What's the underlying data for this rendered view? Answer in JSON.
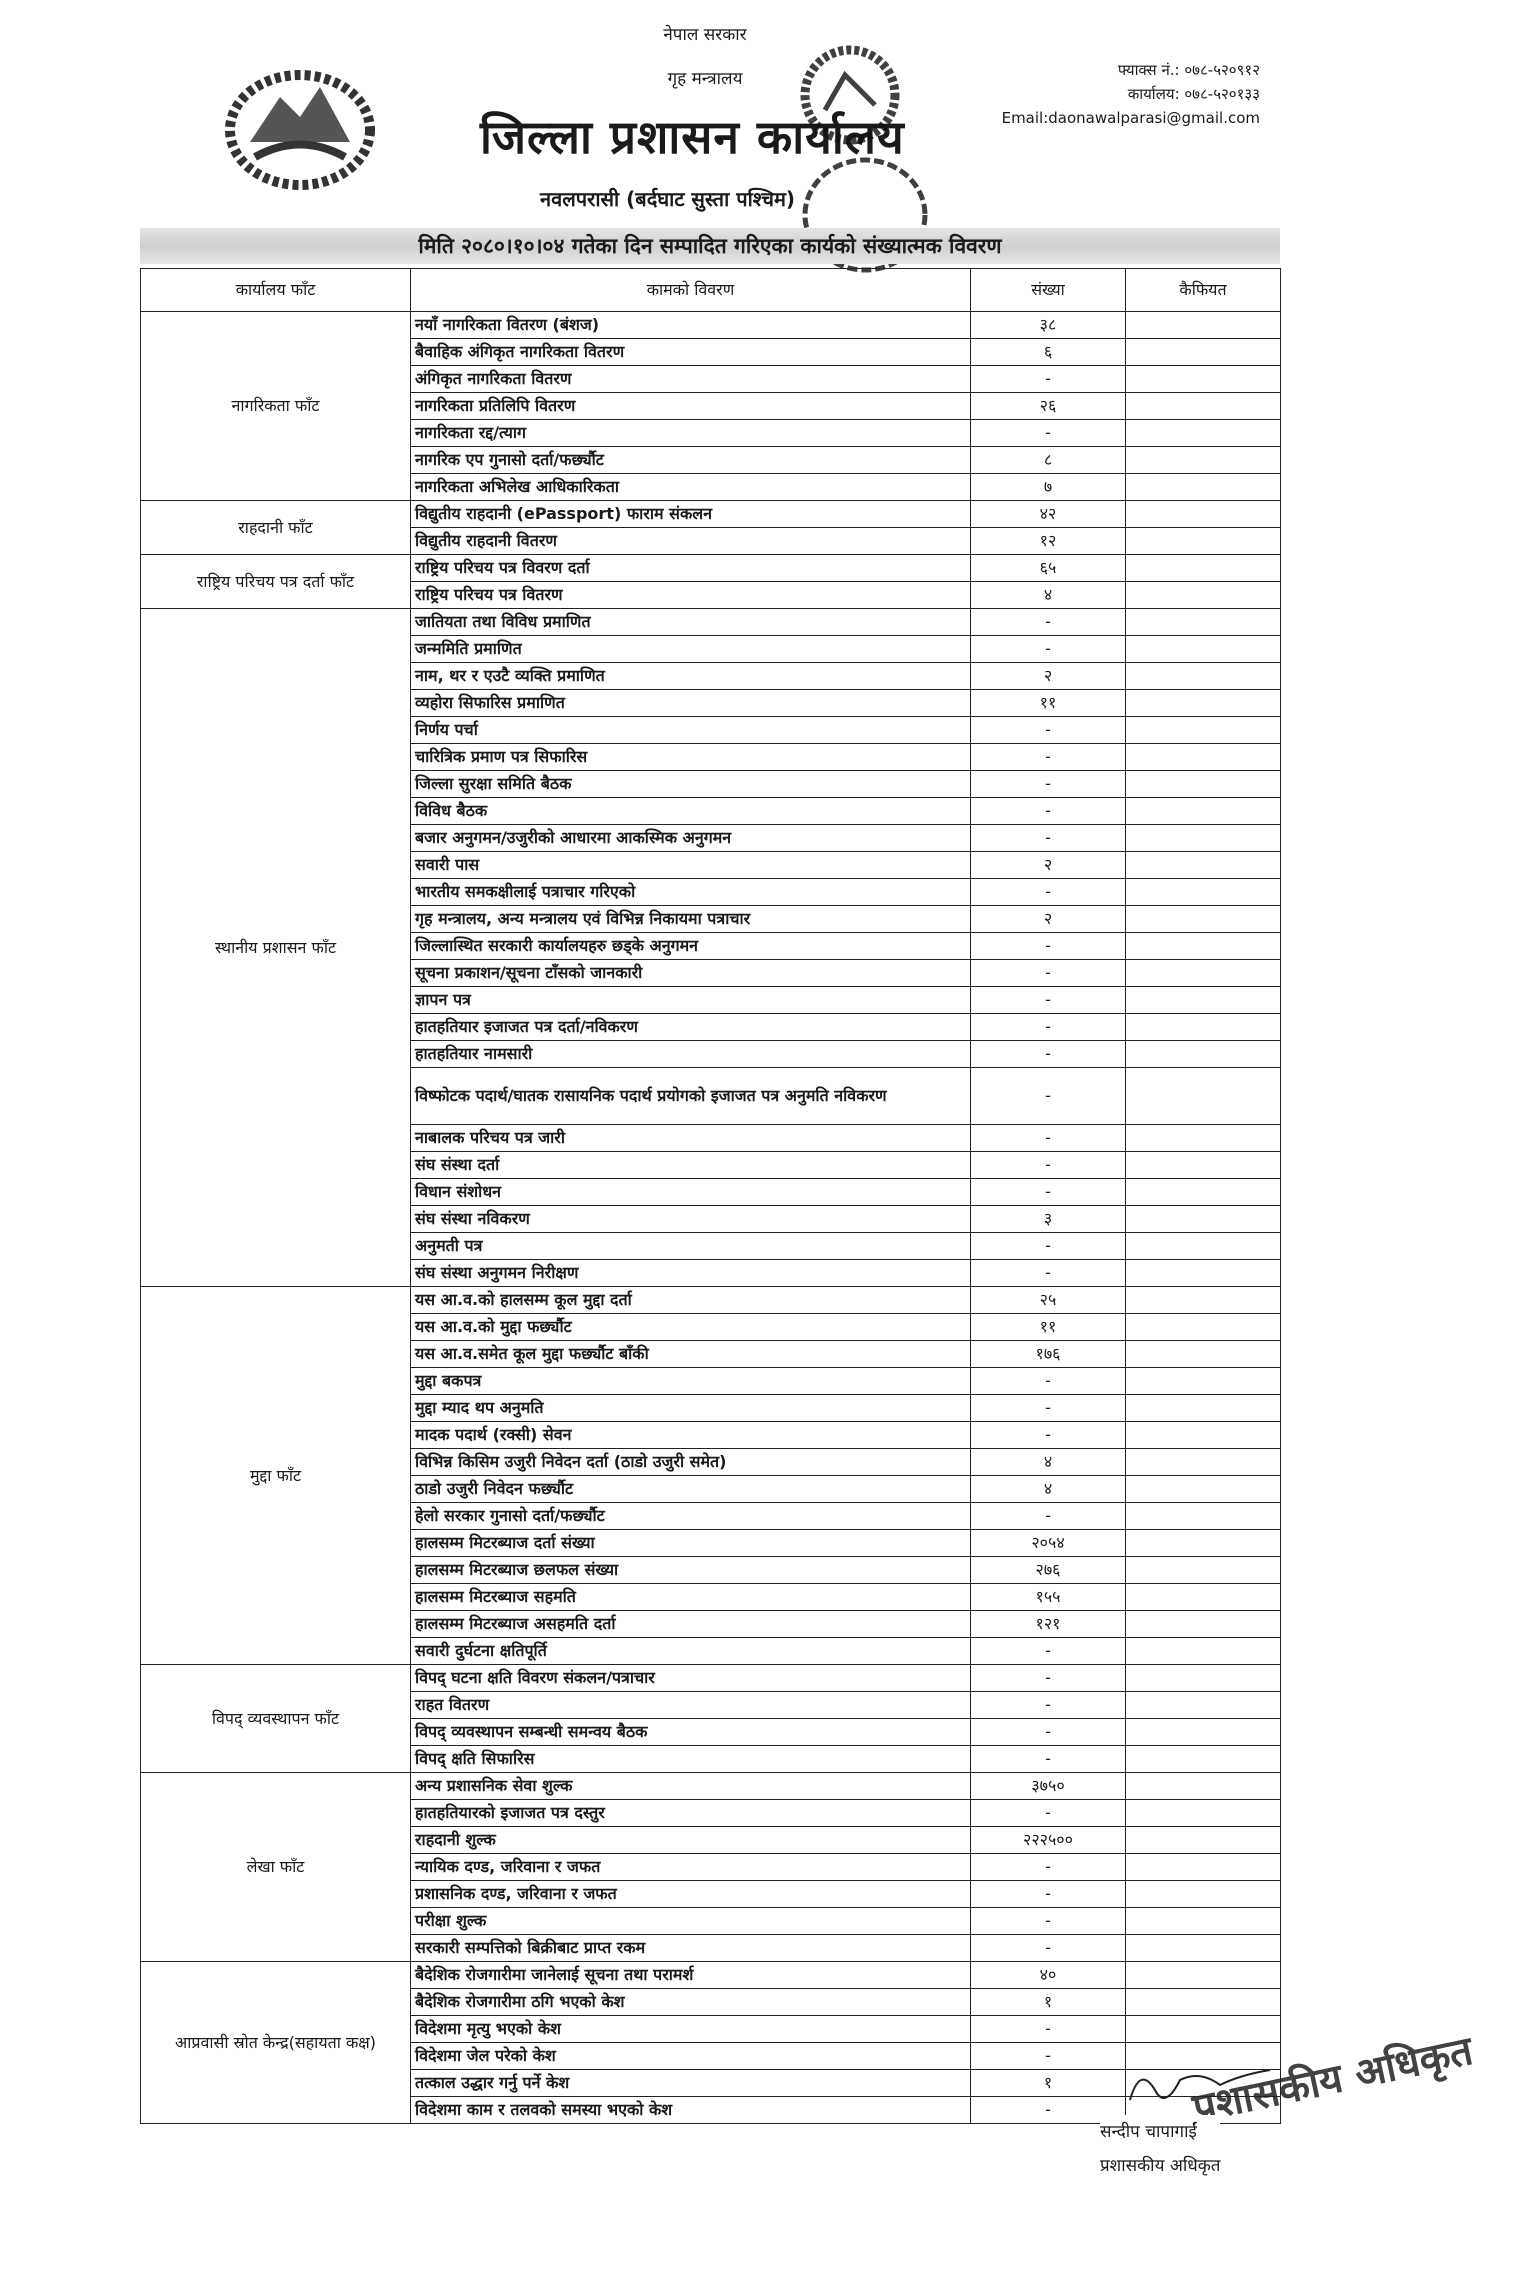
{
  "header": {
    "government": "नेपाल सरकार",
    "ministry": "गृह मन्त्रालय",
    "office": "जिल्ला प्रशासन कार्यालय",
    "district": "नवलपरासी (बर्दघाट सुस्ता पश्चिम)",
    "fax": "फ्याक्स नं.: ०७८-५२०९१२",
    "phone": "कार्यालय: ०७८-५२०१३३",
    "email": "Email:daonawalparasi@gmail.com"
  },
  "report_title": "मिति २०८०।१०।०४ गतेका दिन सम्पादित गरिएका कार्यको संख्यात्मक विवरण",
  "table": {
    "columns": [
      "कार्यालय फाँट",
      "कामको विवरण",
      "संख्या",
      "कैफियत"
    ],
    "sections": [
      {
        "name": "नागरिकता फाँट",
        "rows": [
          {
            "desc": "नयाँ नागरिकता वितरण (बंशज)",
            "count": "३८"
          },
          {
            "desc": "बैवाहिक अंगिकृत नागरिकता वितरण",
            "count": "६"
          },
          {
            "desc": "अंगिकृत नागरिकता वितरण",
            "count": "-"
          },
          {
            "desc": "नागरिकता प्रतिलिपि वितरण",
            "count": "२६"
          },
          {
            "desc": "नागरिकता रद्द/त्याग",
            "count": "-"
          },
          {
            "desc": "नागरिक एप गुनासो दर्ता/फर्छ्यौट",
            "count": "८"
          },
          {
            "desc": "नागरिकता अभिलेख आधिकारिकता",
            "count": "७"
          }
        ]
      },
      {
        "name": "राहदानी फाँट",
        "rows": [
          {
            "desc": "विद्युतीय राहदानी (ePassport) फाराम संकलन",
            "count": "४२"
          },
          {
            "desc": "विद्युतीय राहदानी वितरण",
            "count": "१२"
          }
        ]
      },
      {
        "name": "राष्ट्रिय परिचय पत्र दर्ता फाँट",
        "rows": [
          {
            "desc": "राष्ट्रिय परिचय पत्र विवरण दर्ता",
            "count": "६५"
          },
          {
            "desc": "राष्ट्रिय परिचय पत्र वितरण",
            "count": "४"
          }
        ]
      },
      {
        "name": "स्थानीय प्रशासन फाँट",
        "rows": [
          {
            "desc": "जातियता तथा विविध प्रमाणित",
            "count": "-"
          },
          {
            "desc": "जन्ममिति प्रमाणित",
            "count": "-"
          },
          {
            "desc": "नाम, थर र एउटै व्यक्ति प्रमाणित",
            "count": "२"
          },
          {
            "desc": "व्यहोरा सिफारिस प्रमाणित",
            "count": "११"
          },
          {
            "desc": "निर्णय पर्चा",
            "count": "-"
          },
          {
            "desc": "चारित्रिक प्रमाण पत्र सिफारिस",
            "count": "-"
          },
          {
            "desc": "जिल्ला सुरक्षा समिति बैठक",
            "count": "-"
          },
          {
            "desc": "विविध बैठक",
            "count": "-"
          },
          {
            "desc": "बजार अनुगमन/उजुरीको आधारमा आकस्मिक अनुगमन",
            "count": "-"
          },
          {
            "desc": "सवारी पास",
            "count": "२"
          },
          {
            "desc": "भारतीय समकक्षीलाई पत्राचार गरिएको",
            "count": "-"
          },
          {
            "desc": "गृह मन्त्रालय, अन्य मन्त्रालय एवं विभिन्न निकायमा पत्राचार",
            "count": "२"
          },
          {
            "desc": "जिल्लास्थित सरकारी कार्यालयहरु छड्के अनुगमन",
            "count": "-"
          },
          {
            "desc": "सूचना प्रकाशन/सूचना टाँसको जानकारी",
            "count": "-"
          },
          {
            "desc": "ज्ञापन पत्र",
            "count": "-"
          },
          {
            "desc": "हातहतियार इजाजत पत्र दर्ता/नविकरण",
            "count": "-"
          },
          {
            "desc": "हातहतियार नामसारी",
            "count": "-"
          },
          {
            "desc": "विष्फोटक पदार्थ/घातक रासायनिक पदार्थ प्रयोगको इजाजत पत्र अनुमति नविकरण",
            "count": "-",
            "tall": true
          },
          {
            "desc": "नाबालक परिचय पत्र जारी",
            "count": "-"
          },
          {
            "desc": "संघ संस्था दर्ता",
            "count": "-"
          },
          {
            "desc": "विधान संशोधन",
            "count": "-"
          },
          {
            "desc": "संघ संस्था नविकरण",
            "count": "३"
          },
          {
            "desc": "अनुमती पत्र",
            "count": "-"
          },
          {
            "desc": "संघ संस्था अनुगमन निरीक्षण",
            "count": "-"
          }
        ]
      },
      {
        "name": "मुद्दा फाँट",
        "rows": [
          {
            "desc": "यस आ.व.को हालसम्म कूल मुद्दा दर्ता",
            "count": "२५"
          },
          {
            "desc": "यस आ.व.को मुद्दा फर्छ्यौट",
            "count": "११"
          },
          {
            "desc": "यस आ.व.समेत कूल मुद्दा फर्छ्यौट बाँकी",
            "count": "१७६"
          },
          {
            "desc": "मुद्दा बकपत्र",
            "count": "-"
          },
          {
            "desc": "मुद्दा म्याद थप अनुमति",
            "count": "-"
          },
          {
            "desc": "मादक पदार्थ (रक्सी) सेवन",
            "count": "-"
          },
          {
            "desc": "विभिन्न किसिम उजुरी निवेदन दर्ता (ठाडो उजुरी समेत)",
            "count": "४"
          },
          {
            "desc": "ठाडो उजुरी निवेदन फर्छ्यौट",
            "count": "४"
          },
          {
            "desc": "हेलो सरकार गुनासो दर्ता/फर्छ्यौट",
            "count": "-"
          },
          {
            "desc": "हालसम्म मिटरब्याज दर्ता संख्या",
            "count": "२०५४"
          },
          {
            "desc": "हालसम्म मिटरब्याज छलफल संख्या",
            "count": "२७६"
          },
          {
            "desc": "हालसम्म मिटरब्याज सहमति",
            "count": "१५५"
          },
          {
            "desc": "हालसम्म मिटरब्याज असहमति दर्ता",
            "count": "१२१"
          },
          {
            "desc": "सवारी दुर्घटना क्षतिपूर्ति",
            "count": "-"
          }
        ]
      },
      {
        "name": "विपद् व्यवस्थापन फाँट",
        "rows": [
          {
            "desc": "विपद् घटना क्षति विवरण संकलन/पत्राचार",
            "count": "-"
          },
          {
            "desc": "राहत वितरण",
            "count": "-"
          },
          {
            "desc": "विपद् व्यवस्थापन सम्बन्धी समन्वय बैठक",
            "count": "-"
          },
          {
            "desc": "विपद् क्षति सिफारिस",
            "count": "-"
          }
        ]
      },
      {
        "name": "लेखा फाँट",
        "rows": [
          {
            "desc": "अन्य प्रशासनिक सेवा शुल्क",
            "count": "३७५०"
          },
          {
            "desc": "हातहतियारको इजाजत पत्र दस्तुर",
            "count": "-"
          },
          {
            "desc": "राहदानी शुल्क",
            "count": "२२२५००"
          },
          {
            "desc": "न्यायिक दण्ड, जरिवाना र जफत",
            "count": "-"
          },
          {
            "desc": "प्रशासनिक दण्ड, जरिवाना र जफत",
            "count": "-"
          },
          {
            "desc": "परीक्षा शुल्क",
            "count": "-"
          },
          {
            "desc": "सरकारी सम्पत्तिको बिक्रीबाट प्राप्त रकम",
            "count": "-"
          }
        ]
      },
      {
        "name": "आप्रवासी स्रोत केन्द्र(सहायता कक्ष)",
        "rows": [
          {
            "desc": "बैदेशिक रोजगारीमा जानेलाई सूचना तथा परामर्श",
            "count": "४०"
          },
          {
            "desc": "बैदेशिक रोजगारीमा ठगि भएको केश",
            "count": "१"
          },
          {
            "desc": "विदेशमा मृत्यु भएको केश",
            "count": "-"
          },
          {
            "desc": "विदेशमा जेल परेको केश",
            "count": "-"
          },
          {
            "desc": "तत्काल उद्धार गर्नु पर्ने केश",
            "count": "१"
          },
          {
            "desc": "विदेशमा काम र तलवको समस्या भएको केश",
            "count": "-"
          }
        ]
      }
    ]
  },
  "signature": {
    "name": "सन्दीप चापागाईं",
    "designation": "प्रशासकीय अधिकृत",
    "stamp_text": "प्रशासकीय अधिकृत"
  },
  "stamp": {
    "text": "नेपाल सरकार जिल्ला प्रशासन कार्यालय बर्दघाट"
  }
}
